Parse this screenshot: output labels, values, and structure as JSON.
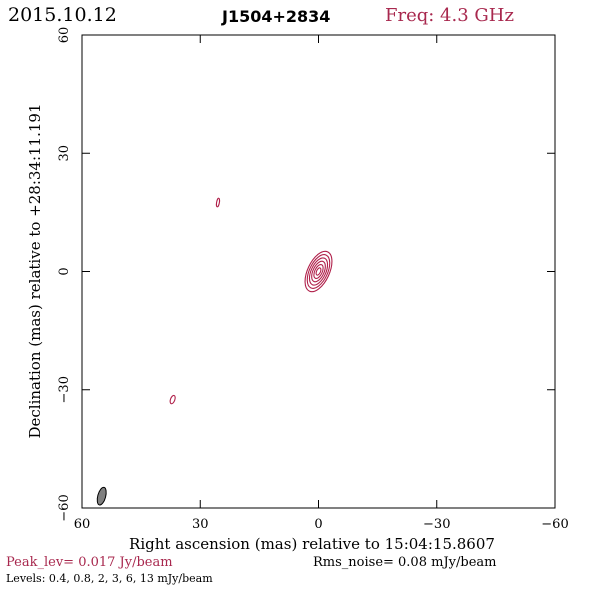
{
  "header": {
    "date": "2015.10.12",
    "source": "J1504+2834",
    "frequency": "Freq: 4.3 GHz"
  },
  "footer": {
    "peak": "Peak_lev=  0.017 Jy/beam",
    "rms": "Rms_noise= 0.08 mJy/beam",
    "levels": "Levels: 0.4, 0.8,    2,    3,    6,   13 mJy/beam"
  },
  "colors": {
    "contour": "#b0204a",
    "accent_text": "#a8284e",
    "beam_fill": "#808080"
  },
  "chart_data": {
    "type": "contour",
    "xlabel": "Right ascension (mas) relative to 15:04:15.8607",
    "ylabel": "Declination (mas) relative to +28:34:11.191",
    "xlim": [
      60,
      -60
    ],
    "ylim": [
      -60,
      60
    ],
    "xticks": [
      60,
      30,
      0,
      -30,
      -60
    ],
    "yticks": [
      60,
      30,
      0,
      -30,
      -60
    ],
    "xtick_labels": [
      "60",
      "30",
      "0",
      "−30",
      "−60"
    ],
    "ytick_labels": [
      "60",
      "30",
      "0",
      "−30",
      "−60"
    ],
    "grid": false,
    "levels_mJy": [
      0.4,
      0.8,
      2,
      3,
      6,
      13
    ],
    "components": [
      {
        "ra": 0,
        "dec": 0,
        "major_mas": 11,
        "minor_mas": 5.5,
        "pa_deg": 155,
        "n_levels": 6
      },
      {
        "ra": 25.5,
        "dec": 17.5,
        "major_mas": 2.2,
        "minor_mas": 0.7,
        "pa_deg": 170,
        "n_levels": 1
      },
      {
        "ra": 37,
        "dec": -32.5,
        "major_mas": 2.2,
        "minor_mas": 1.1,
        "pa_deg": 160,
        "n_levels": 1
      }
    ],
    "beam": {
      "ra": 55,
      "dec": -57,
      "major_mas": 4.6,
      "minor_mas": 2.0,
      "pa_deg": 165
    }
  }
}
